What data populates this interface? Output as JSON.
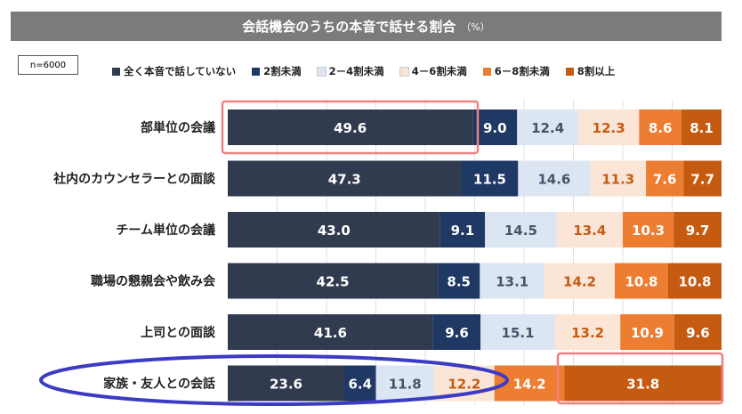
{
  "chart_data": {
    "type": "bar",
    "orientation": "horizontal-stacked-100",
    "title": "会話機会のうちの本音で話せる割合",
    "unit": "（%）",
    "sample_note": "n=6000",
    "categories": [
      "部単位の会議",
      "社内のカウンセラーとの面談",
      "チーム単位の会議",
      "職場の懇親会や飲み会",
      "上司との面談",
      "家族・友人との会話"
    ],
    "series": [
      {
        "name": "全く本音で話していない",
        "color": "#313b50",
        "text_color": "#ffffff",
        "values": [
          49.6,
          47.3,
          43.0,
          42.5,
          41.6,
          23.6
        ]
      },
      {
        "name": "2割未満",
        "color": "#1f3864",
        "text_color": "#ffffff",
        "values": [
          9.0,
          11.5,
          9.1,
          8.5,
          9.6,
          6.4
        ]
      },
      {
        "name": "2－4割未満",
        "color": "#dce6f2",
        "text_color": "#44546a",
        "values": [
          12.4,
          14.6,
          14.5,
          13.1,
          15.1,
          11.8
        ]
      },
      {
        "name": "4－6割未満",
        "color": "#fbe5d6",
        "text_color": "#c55a11",
        "values": [
          12.3,
          11.3,
          13.4,
          14.2,
          13.2,
          12.2
        ]
      },
      {
        "name": "6－8割未満",
        "color": "#ed7d31",
        "text_color": "#ffffff",
        "values": [
          8.6,
          7.6,
          10.3,
          10.8,
          10.9,
          14.2
        ]
      },
      {
        "name": "8割以上",
        "color": "#c55a11",
        "text_color": "#ffffff",
        "values": [
          8.1,
          7.7,
          9.7,
          10.8,
          9.6,
          31.8
        ]
      }
    ],
    "xlim": [
      0,
      100
    ]
  },
  "highlight_colors": {
    "rect": "#f08080",
    "ellipse": "#3b3bc4"
  }
}
